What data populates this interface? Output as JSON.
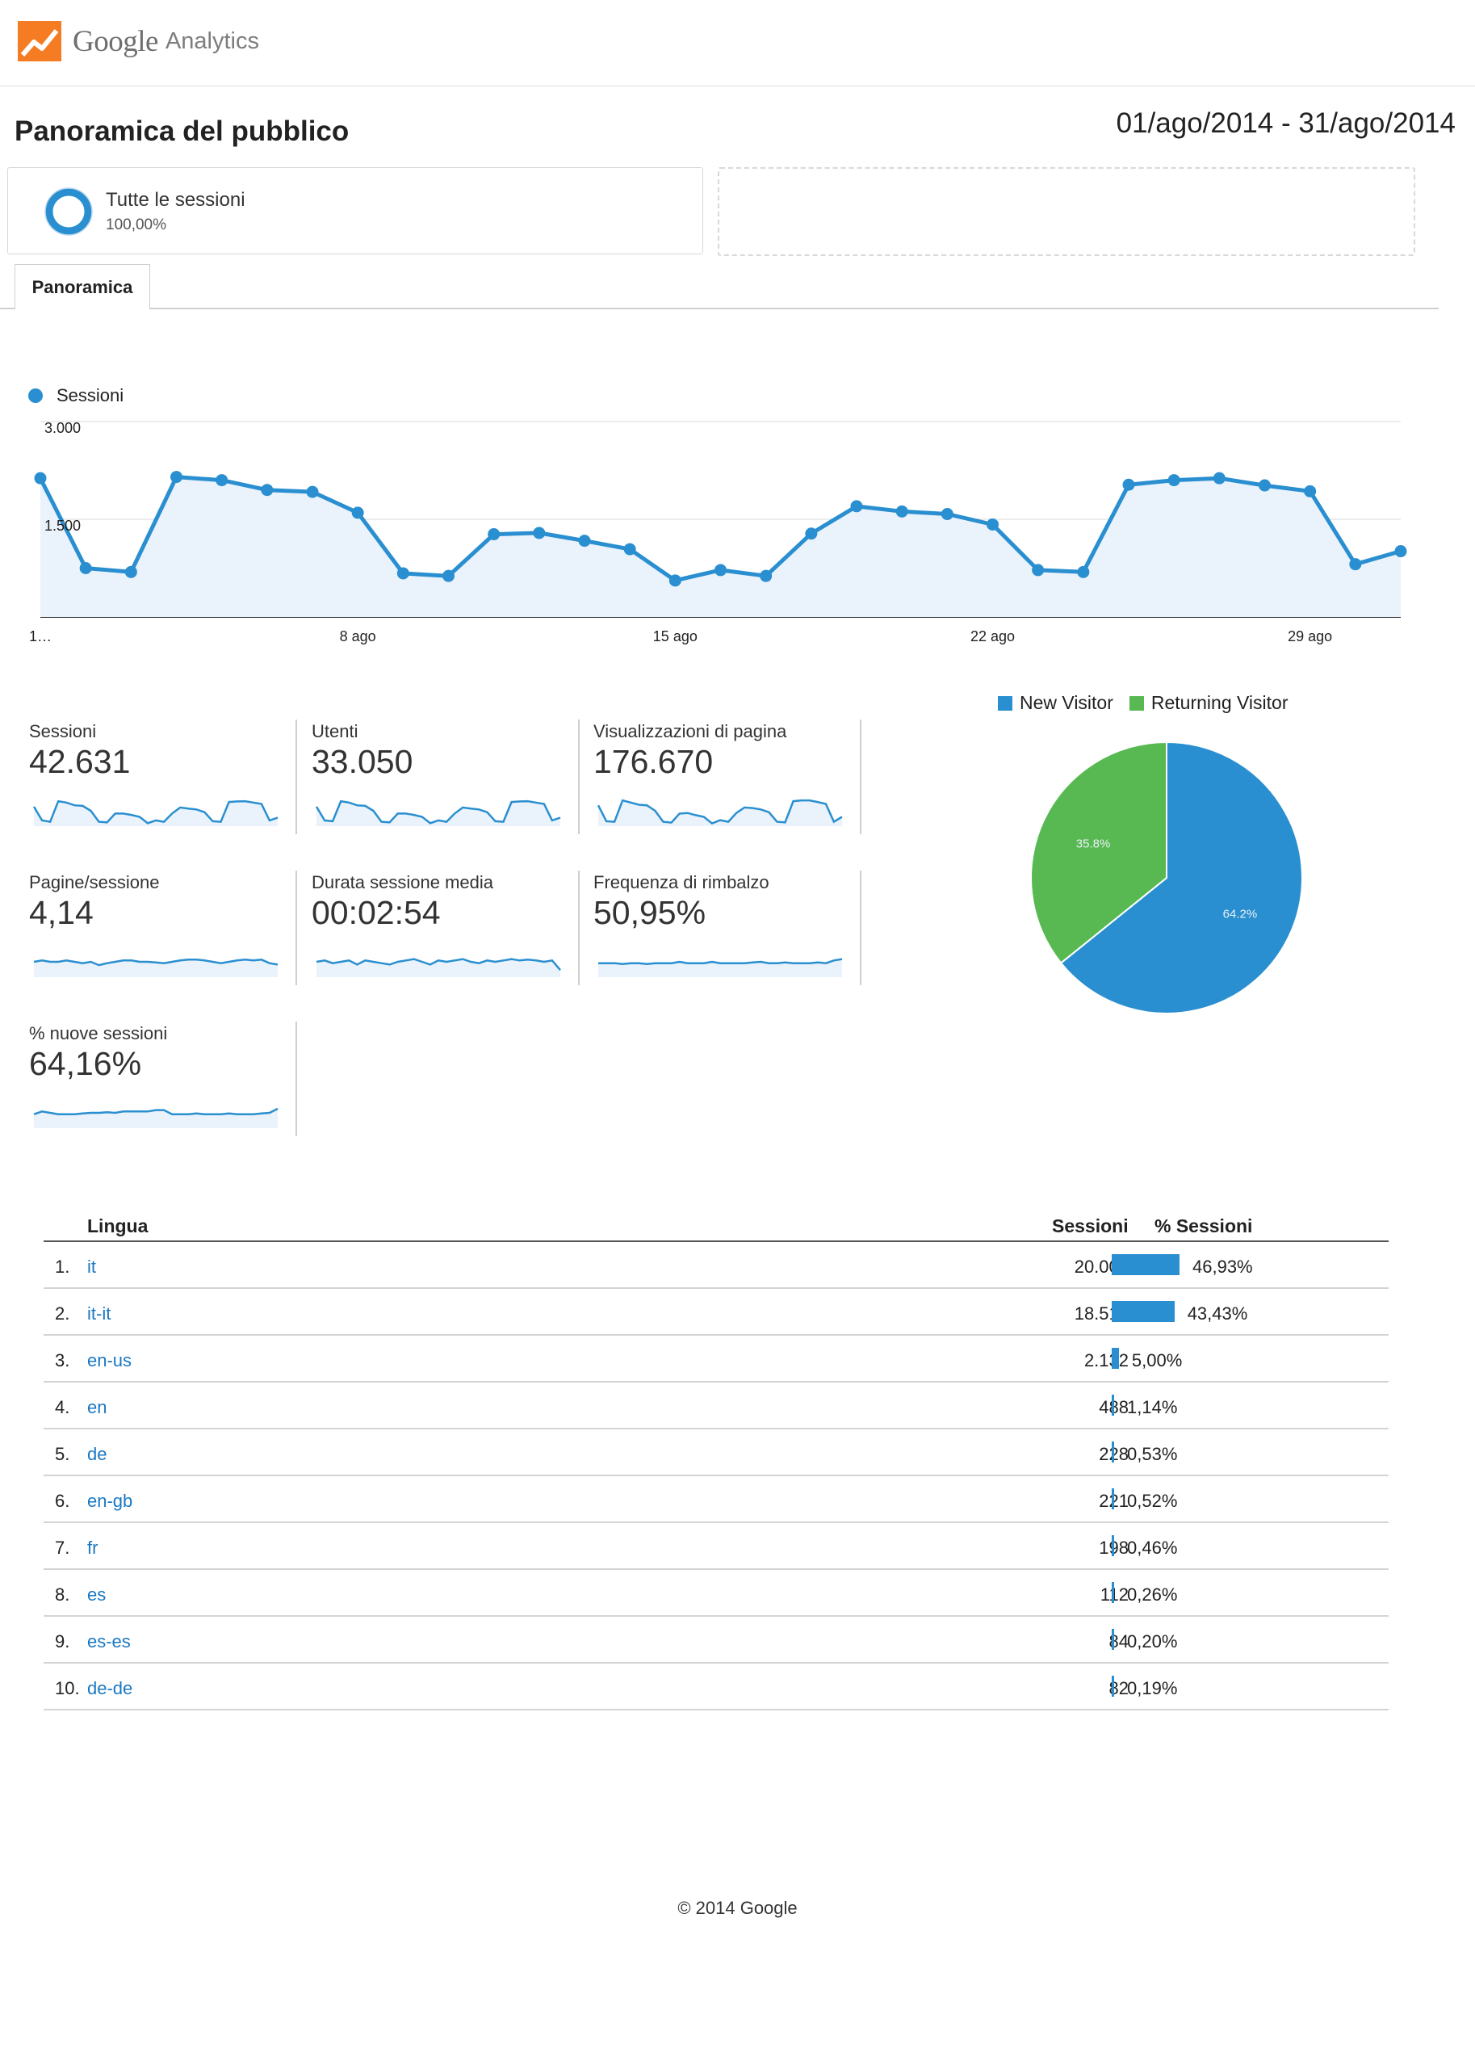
{
  "header": {
    "logo_google": "Google",
    "logo_analytics": "Analytics",
    "page_title": "Panoramica del pubblico",
    "date_range": "01/ago/2014 - 31/ago/2014"
  },
  "segment": {
    "name": "Tutte le sessioni",
    "percent": "100,00%"
  },
  "tabs": [
    {
      "label": "Panoramica"
    }
  ],
  "colors": {
    "primary": "#2a8fd0",
    "returning": "#58b952",
    "link": "#1a78c2",
    "area": "#eaf2fb"
  },
  "chart_data": [
    {
      "type": "line",
      "legend": "Sessioni",
      "x_tick_labels": [
        "1…",
        "8 ago",
        "15 ago",
        "22 ago",
        "29 ago"
      ],
      "y_tick_labels": [
        "3.000",
        "1.500"
      ],
      "ylim": [
        0,
        3000
      ],
      "series": [
        {
          "name": "Sessioni",
          "x": [
            "1 ago",
            "2 ago",
            "3 ago",
            "4 ago",
            "5 ago",
            "6 ago",
            "7 ago",
            "8 ago",
            "9 ago",
            "10 ago",
            "11 ago",
            "12 ago",
            "13 ago",
            "14 ago",
            "15 ago",
            "16 ago",
            "17 ago",
            "18 ago",
            "19 ago",
            "20 ago",
            "21 ago",
            "22 ago",
            "23 ago",
            "24 ago",
            "25 ago",
            "26 ago",
            "27 ago",
            "28 ago",
            "29 ago",
            "30 ago",
            "31 ago"
          ],
          "values": [
            2130,
            750,
            690,
            2150,
            2100,
            1950,
            1920,
            1600,
            670,
            630,
            1270,
            1290,
            1170,
            1040,
            560,
            720,
            630,
            1280,
            1700,
            1620,
            1580,
            1420,
            720,
            690,
            2030,
            2100,
            2130,
            2020,
            1930,
            810,
            1010
          ]
        }
      ]
    },
    {
      "type": "pie",
      "legend": [
        "New Visitor",
        "Returning Visitor"
      ],
      "values": [
        64.2,
        35.8
      ],
      "labels": [
        "64.2%",
        "35.8%"
      ],
      "colors": [
        "#2a8fd0",
        "#58b952"
      ]
    }
  ],
  "metrics": [
    {
      "label": "Sessioni",
      "value": "42.631",
      "spark": [
        0.35,
        0.85,
        0.9,
        0.15,
        0.2,
        0.3,
        0.32,
        0.5,
        0.9,
        0.92,
        0.6,
        0.6,
        0.65,
        0.72,
        0.95,
        0.85,
        0.9,
        0.6,
        0.38,
        0.42,
        0.45,
        0.55,
        0.88,
        0.9,
        0.18,
        0.16,
        0.15,
        0.2,
        0.25,
        0.85,
        0.75
      ]
    },
    {
      "label": "Utenti",
      "value": "33.050",
      "spark": [
        0.35,
        0.85,
        0.88,
        0.15,
        0.2,
        0.3,
        0.32,
        0.5,
        0.9,
        0.92,
        0.6,
        0.6,
        0.65,
        0.72,
        0.95,
        0.85,
        0.9,
        0.6,
        0.38,
        0.42,
        0.45,
        0.55,
        0.88,
        0.9,
        0.18,
        0.16,
        0.15,
        0.2,
        0.25,
        0.85,
        0.75
      ]
    },
    {
      "label": "Visualizzazioni di pagina",
      "value": "176.670",
      "spark": [
        0.3,
        0.88,
        0.9,
        0.12,
        0.2,
        0.28,
        0.3,
        0.5,
        0.9,
        0.93,
        0.6,
        0.58,
        0.66,
        0.72,
        0.96,
        0.84,
        0.9,
        0.58,
        0.38,
        0.4,
        0.45,
        0.55,
        0.9,
        0.92,
        0.15,
        0.12,
        0.12,
        0.18,
        0.25,
        0.9,
        0.72
      ]
    },
    {
      "label": "Pagine/sessione",
      "value": "4,14",
      "spark": [
        0.5,
        0.45,
        0.5,
        0.5,
        0.45,
        0.5,
        0.55,
        0.5,
        0.62,
        0.55,
        0.5,
        0.45,
        0.45,
        0.5,
        0.5,
        0.52,
        0.55,
        0.5,
        0.45,
        0.42,
        0.42,
        0.45,
        0.5,
        0.55,
        0.5,
        0.45,
        0.42,
        0.45,
        0.42,
        0.55,
        0.6
      ]
    },
    {
      "label": "Durata sessione media",
      "value": "00:02:54",
      "spark": [
        0.5,
        0.45,
        0.55,
        0.5,
        0.45,
        0.6,
        0.45,
        0.5,
        0.55,
        0.6,
        0.5,
        0.45,
        0.4,
        0.5,
        0.6,
        0.45,
        0.5,
        0.45,
        0.4,
        0.5,
        0.55,
        0.45,
        0.5,
        0.45,
        0.4,
        0.45,
        0.42,
        0.45,
        0.5,
        0.45,
        0.8
      ]
    },
    {
      "label": "Frequenza di rimbalzo",
      "value": "50,95%",
      "spark": [
        0.55,
        0.55,
        0.55,
        0.58,
        0.55,
        0.55,
        0.58,
        0.55,
        0.55,
        0.55,
        0.5,
        0.55,
        0.55,
        0.55,
        0.5,
        0.55,
        0.55,
        0.55,
        0.55,
        0.52,
        0.5,
        0.55,
        0.55,
        0.52,
        0.55,
        0.55,
        0.55,
        0.52,
        0.55,
        0.45,
        0.4
      ]
    },
    {
      "label": "% nuove sessioni",
      "value": "64,16%",
      "spark": [
        0.55,
        0.45,
        0.5,
        0.55,
        0.55,
        0.55,
        0.52,
        0.5,
        0.5,
        0.48,
        0.5,
        0.45,
        0.45,
        0.45,
        0.45,
        0.4,
        0.4,
        0.55,
        0.55,
        0.55,
        0.52,
        0.55,
        0.55,
        0.55,
        0.52,
        0.55,
        0.55,
        0.55,
        0.52,
        0.5,
        0.35
      ]
    }
  ],
  "table": {
    "headers": {
      "language": "Lingua",
      "sessions": "Sessioni",
      "pct": "% Sessioni"
    },
    "rows": [
      {
        "rank": "1.",
        "lang": "it",
        "sessions": "20.008",
        "pct": "46,93%",
        "share": 46.93
      },
      {
        "rank": "2.",
        "lang": "it-it",
        "sessions": "18.513",
        "pct": "43,43%",
        "share": 43.43
      },
      {
        "rank": "3.",
        "lang": "en-us",
        "sessions": "2.132",
        "pct": "5,00%",
        "share": 5.0
      },
      {
        "rank": "4.",
        "lang": "en",
        "sessions": "488",
        "pct": "1,14%",
        "share": 1.14
      },
      {
        "rank": "5.",
        "lang": "de",
        "sessions": "228",
        "pct": "0,53%",
        "share": 0.53
      },
      {
        "rank": "6.",
        "lang": "en-gb",
        "sessions": "221",
        "pct": "0,52%",
        "share": 0.52
      },
      {
        "rank": "7.",
        "lang": "fr",
        "sessions": "198",
        "pct": "0,46%",
        "share": 0.46
      },
      {
        "rank": "8.",
        "lang": "es",
        "sessions": "112",
        "pct": "0,26%",
        "share": 0.26
      },
      {
        "rank": "9.",
        "lang": "es-es",
        "sessions": "84",
        "pct": "0,20%",
        "share": 0.2
      },
      {
        "rank": "10.",
        "lang": "de-de",
        "sessions": "82",
        "pct": "0,19%",
        "share": 0.19
      }
    ]
  },
  "footer": "© 2014 Google"
}
